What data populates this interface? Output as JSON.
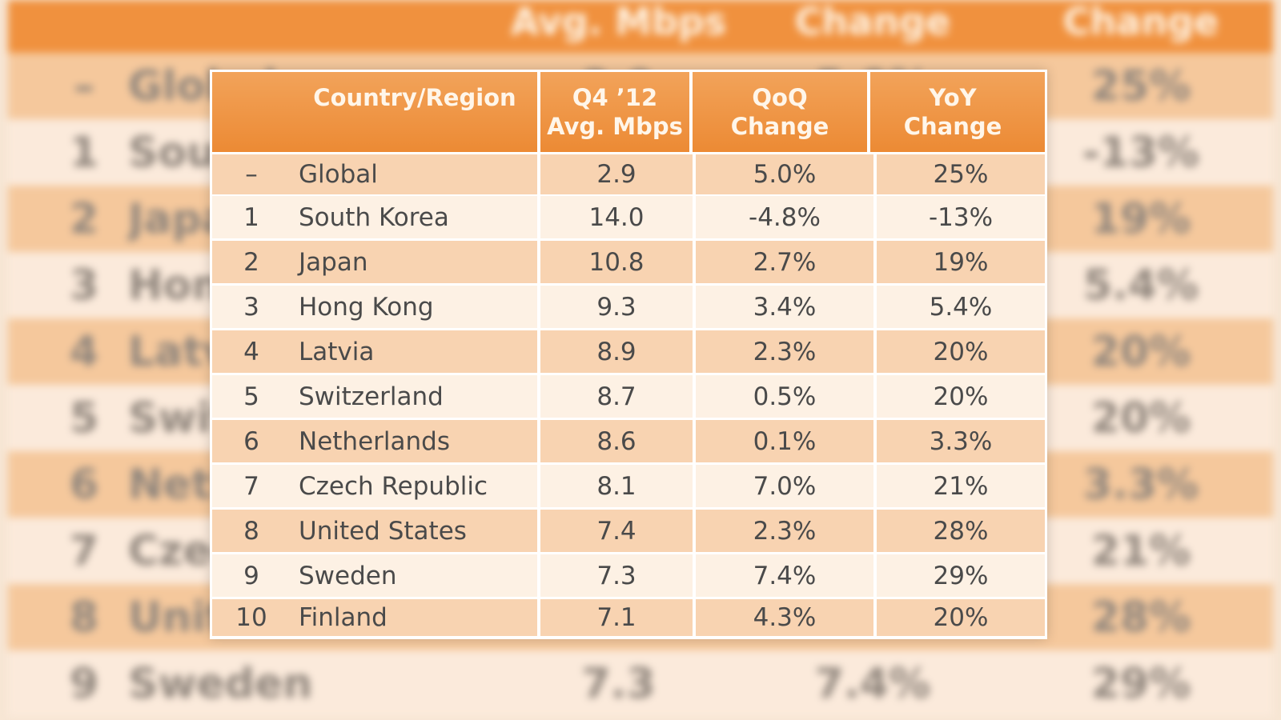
{
  "chart_data": {
    "type": "table",
    "columns": [
      "Country/Region",
      "Q4 ’12 Avg. Mbps",
      "QoQ Change",
      "YoY Change"
    ],
    "header_lines": [
      [
        "Country/Region"
      ],
      [
        "Q4 ’12",
        "Avg. Mbps"
      ],
      [
        "QoQ",
        "Change"
      ],
      [
        "YoY",
        "Change"
      ]
    ],
    "rows": [
      {
        "rank": "–",
        "name": "Global",
        "avg": "2.9",
        "qoq": "5.0%",
        "yoy": "25%"
      },
      {
        "rank": "1",
        "name": "South Korea",
        "avg": "14.0",
        "qoq": "-4.8%",
        "yoy": "-13%"
      },
      {
        "rank": "2",
        "name": "Japan",
        "avg": "10.8",
        "qoq": "2.7%",
        "yoy": "19%"
      },
      {
        "rank": "3",
        "name": "Hong Kong",
        "avg": "9.3",
        "qoq": "3.4%",
        "yoy": "5.4%"
      },
      {
        "rank": "4",
        "name": "Latvia",
        "avg": "8.9",
        "qoq": "2.3%",
        "yoy": "20%"
      },
      {
        "rank": "5",
        "name": "Switzerland",
        "avg": "8.7",
        "qoq": "0.5%",
        "yoy": "20%"
      },
      {
        "rank": "6",
        "name": "Netherlands",
        "avg": "8.6",
        "qoq": "0.1%",
        "yoy": "3.3%"
      },
      {
        "rank": "7",
        "name": "Czech Republic",
        "avg": "8.1",
        "qoq": "7.0%",
        "yoy": "21%"
      },
      {
        "rank": "8",
        "name": "United States",
        "avg": "7.4",
        "qoq": "2.3%",
        "yoy": "28%"
      },
      {
        "rank": "9",
        "name": "Sweden",
        "avg": "7.3",
        "qoq": "7.4%",
        "yoy": "29%"
      },
      {
        "rank": "10",
        "name": "Finland",
        "avg": "7.1",
        "qoq": "4.3%",
        "yoy": "20%"
      }
    ]
  },
  "background_table": {
    "header": [
      "",
      "Avg. Mbps",
      "Change",
      "Change"
    ],
    "rows": [
      {
        "rank": "–",
        "name": "Global",
        "avg": "2.9",
        "qoq": "5.0%",
        "yoy": "25%"
      },
      {
        "rank": "1",
        "name": "South Korea",
        "avg": "",
        "qoq": "",
        "yoy": "-13%"
      },
      {
        "rank": "2",
        "name": "Japan",
        "avg": "",
        "qoq": "",
        "yoy": "19%"
      },
      {
        "rank": "3",
        "name": "Hong Kong",
        "avg": "",
        "qoq": "",
        "yoy": "5.4%"
      },
      {
        "rank": "4",
        "name": "Latvia",
        "avg": "",
        "qoq": "",
        "yoy": "20%"
      },
      {
        "rank": "5",
        "name": "Switzerland",
        "avg": "",
        "qoq": "",
        "yoy": "20%"
      },
      {
        "rank": "6",
        "name": "Netherlands",
        "avg": "",
        "qoq": "",
        "yoy": "3.3%"
      },
      {
        "rank": "7",
        "name": "Czech Republic",
        "avg": "",
        "qoq": "",
        "yoy": "21%"
      },
      {
        "rank": "8",
        "name": "United States",
        "avg": "",
        "qoq": "",
        "yoy": "28%"
      },
      {
        "rank": "9",
        "name": "Sweden",
        "avg": "7.3",
        "qoq": "7.4%",
        "yoy": "29%"
      }
    ]
  },
  "colors": {
    "header_orange": "#ec8a34",
    "row_dark": "#f8d3b1",
    "row_light": "#fdf1e4",
    "text": "#4a4a4a"
  }
}
